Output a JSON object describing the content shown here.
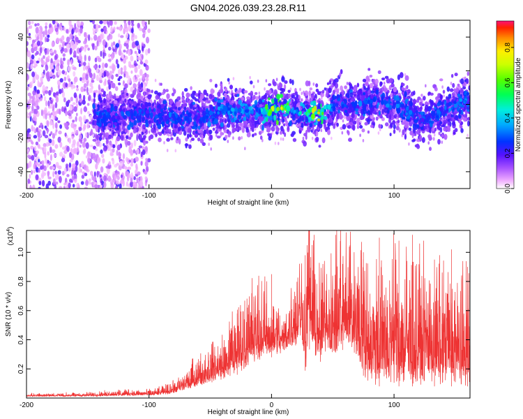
{
  "chart_data": [
    {
      "type": "heatmap",
      "title": "GN04.2026.039.23.28.R11",
      "xlabel": "Height of straight line (km)",
      "ylabel": "Frequency (Hz)",
      "xlim": [
        -200,
        162
      ],
      "ylim": [
        -50,
        50
      ],
      "xticks": [
        -200,
        -100,
        0,
        100
      ],
      "yticks": [
        -40,
        -20,
        0,
        20,
        40
      ],
      "colorbar": {
        "label": "Normalized spectral amplitude",
        "range": [
          0,
          0.95
        ],
        "ticks": [
          0.0,
          0.2,
          0.4,
          0.6,
          0.8
        ],
        "tick_labels": [
          "0.0",
          "0.2",
          "0.4",
          "0.6",
          "0.8"
        ],
        "colors": [
          "#ffffff",
          "#ee99ff",
          "#9944ff",
          "#3300ff",
          "#0066ff",
          "#00ccff",
          "#00ff88",
          "#33ff00",
          "#ccff00",
          "#ffff00",
          "#ffaa00",
          "#ff3300",
          "#ff2266"
        ]
      },
      "ridge": {
        "x": [
          -145,
          -130,
          -110,
          -95,
          -80,
          -60,
          -40,
          -20,
          -10,
          0,
          10,
          15,
          20,
          25,
          30,
          35,
          40,
          45,
          50,
          55,
          60,
          70,
          80,
          90,
          100,
          110,
          120,
          130,
          140,
          150,
          162
        ],
        "freq": [
          -6,
          -8,
          -5,
          -6,
          -7,
          -8,
          -4,
          -4,
          -5,
          -3,
          -1,
          -2,
          -4,
          -7,
          -6,
          -4,
          -6,
          -4,
          0,
          4,
          0,
          -1,
          1,
          2,
          0,
          -2,
          -10,
          -7,
          -4,
          0,
          2
        ],
        "peak": [
          0.35,
          0.3,
          0.3,
          0.3,
          0.35,
          0.3,
          0.4,
          0.4,
          0.4,
          0.9,
          0.8,
          0.6,
          0.5,
          0.6,
          0.7,
          0.85,
          0.8,
          0.6,
          0.3,
          0.35,
          0.3,
          0.35,
          0.4,
          0.35,
          0.35,
          0.35,
          0.3,
          0.35,
          0.35,
          0.35,
          0.4
        ]
      }
    },
    {
      "type": "line",
      "title": "",
      "xlabel": "Height of straight line (km)",
      "ylabel": "SNR (10 * v/v)",
      "y_multiplier": "(x10",
      "y_multiplier_exp": "4",
      "y_multiplier_close": ")",
      "xlim": [
        -200,
        162
      ],
      "ylim": [
        0,
        1.15
      ],
      "xticks": [
        -200,
        -100,
        0,
        100
      ],
      "yticks": [
        0.2,
        0.4,
        0.6,
        0.8,
        1.0
      ],
      "ytick_labels": [
        "0.2",
        "0.4",
        "0.6",
        "0.8",
        "1.0"
      ],
      "color": "#ee3333",
      "envelope": {
        "x": [
          -200,
          -150,
          -120,
          -100,
          -90,
          -80,
          -70,
          -60,
          -50,
          -40,
          -30,
          -20,
          -10,
          0,
          10,
          20,
          25,
          28,
          30,
          33,
          36,
          40,
          45,
          50,
          55,
          60,
          65,
          80,
          100,
          120,
          140,
          162
        ],
        "base": [
          0.01,
          0.01,
          0.015,
          0.015,
          0.02,
          0.03,
          0.05,
          0.08,
          0.1,
          0.12,
          0.15,
          0.2,
          0.25,
          0.28,
          0.3,
          0.35,
          0.38,
          0.15,
          0.3,
          0.4,
          0.25,
          0.15,
          0.35,
          0.25,
          0.3,
          0.35,
          0.3,
          0.08,
          0.08,
          0.08,
          0.08,
          0.08
        ],
        "amp": [
          0.015,
          0.02,
          0.03,
          0.03,
          0.04,
          0.06,
          0.1,
          0.14,
          0.18,
          0.22,
          0.35,
          0.4,
          0.4,
          0.3,
          0.2,
          0.4,
          0.45,
          0.5,
          0.9,
          0.45,
          0.6,
          0.55,
          0.45,
          0.5,
          0.55,
          0.55,
          0.55,
          0.6,
          0.65,
          0.6,
          0.6,
          0.55
        ]
      },
      "spikes": [
        {
          "x": -125,
          "y": 0.055
        },
        {
          "x": -28,
          "y": 0.58
        },
        {
          "x": 0,
          "y": 0.85
        },
        {
          "x": 27.5,
          "y": 0.98
        },
        {
          "x": 31,
          "y": 1.15
        },
        {
          "x": 33,
          "y": 1.05
        },
        {
          "x": 58,
          "y": 0.92
        },
        {
          "x": 75,
          "y": 1.0
        },
        {
          "x": 88,
          "y": 1.1
        },
        {
          "x": 104,
          "y": 1.08
        },
        {
          "x": 115,
          "y": 1.12
        },
        {
          "x": 133,
          "y": 0.95
        },
        {
          "x": 147,
          "y": 1.02
        },
        {
          "x": 160,
          "y": 0.9
        }
      ]
    }
  ]
}
